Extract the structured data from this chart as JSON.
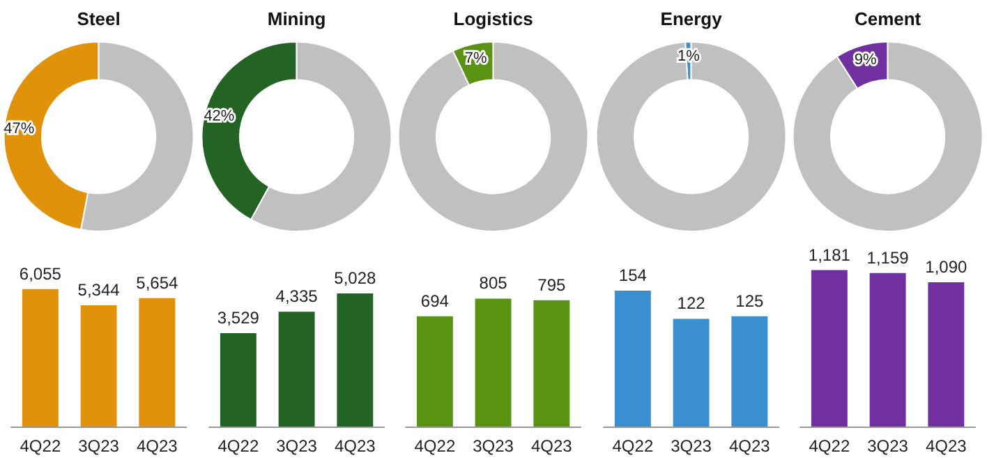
{
  "chart_data": [
    {
      "type": "donut",
      "title": "Steel",
      "categories": [
        null,
        null
      ],
      "values": [
        47,
        53
      ],
      "colors": [
        "#e0930a",
        "#c0c0c0"
      ],
      "value_labels": [
        "47%",
        null
      ]
    },
    {
      "type": "donut",
      "title": "Mining",
      "categories": [
        null,
        null
      ],
      "values": [
        42,
        58
      ],
      "colors": [
        "#236323",
        "#c0c0c0"
      ],
      "value_labels": [
        "42%",
        null
      ]
    },
    {
      "type": "donut",
      "title": "Logistics",
      "categories": [
        null,
        null
      ],
      "values": [
        7,
        93
      ],
      "colors": [
        "#5a9212",
        "#c0c0c0"
      ],
      "value_labels": [
        "7%",
        null
      ]
    },
    {
      "type": "donut",
      "title": "Energy",
      "categories": [
        null,
        null
      ],
      "values": [
        1,
        99
      ],
      "colors": [
        "#3a8fd0",
        "#c0c0c0"
      ],
      "value_labels": [
        "1%",
        null
      ]
    },
    {
      "type": "donut",
      "title": "Cement",
      "categories": [
        null,
        null
      ],
      "values": [
        9,
        91
      ],
      "colors": [
        "#7030a0",
        "#c0c0c0"
      ],
      "value_labels": [
        "9%",
        null
      ]
    },
    {
      "type": "bar",
      "categories": [
        "4Q22",
        "3Q23",
        "4Q23"
      ],
      "values": [
        6055,
        5344,
        5654
      ],
      "color": "#e0930a",
      "value_labels": [
        "6,055",
        "5,344",
        "5,654"
      ]
    },
    {
      "type": "bar",
      "categories": [
        "4Q22",
        "3Q23",
        "4Q23"
      ],
      "values": [
        3529,
        4335,
        5028
      ],
      "color": "#236323",
      "value_labels": [
        "3,529",
        "4,335",
        "5,028"
      ]
    },
    {
      "type": "bar",
      "categories": [
        "4Q22",
        "3Q23",
        "4Q23"
      ],
      "values": [
        694,
        805,
        795
      ],
      "color": "#5a9212",
      "value_labels": [
        "694",
        "805",
        "795"
      ]
    },
    {
      "type": "bar",
      "categories": [
        "4Q22",
        "3Q23",
        "4Q23"
      ],
      "values": [
        154,
        122,
        125
      ],
      "color": "#3a8fd0",
      "value_labels": [
        "154",
        "122",
        "125"
      ]
    },
    {
      "type": "bar",
      "categories": [
        "4Q22",
        "3Q23",
        "4Q23"
      ],
      "values": [
        1181,
        1159,
        1090
      ],
      "color": "#7030a0",
      "value_labels": [
        "1,181",
        "1,159",
        "1,090"
      ]
    }
  ]
}
